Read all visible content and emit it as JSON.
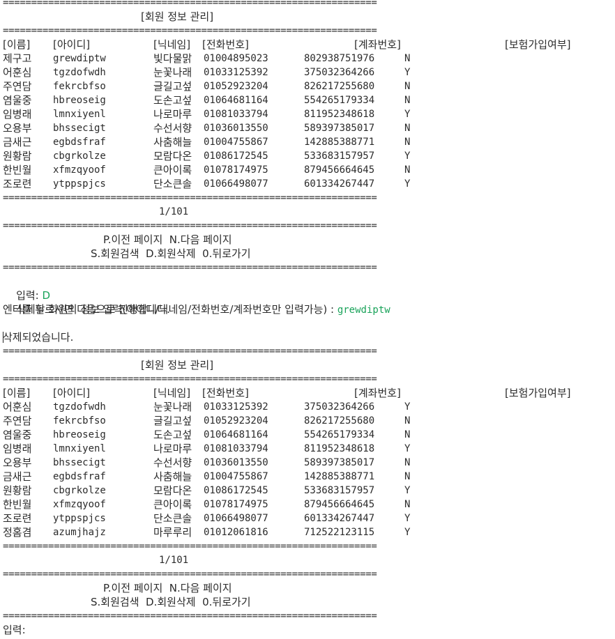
{
  "separator": "==================================================================",
  "title": "[회원 정보 관리]",
  "headers": {
    "name": "[이름]",
    "id": "[아이디]",
    "nick": "[닉네임]",
    "phone": "[전화번호]",
    "account": "[계좌번호]",
    "insurance": "[보험가입여부]"
  },
  "table1": [
    {
      "name": "제구고",
      "id": "grewdiptw",
      "nick": "빛다물맑",
      "phone": "01004895023",
      "account": "802938751976",
      "ins": "N"
    },
    {
      "name": "어훈심",
      "id": "tgzdofwdh",
      "nick": "눈꽃나래",
      "phone": "01033125392",
      "account": "375032364266",
      "ins": "Y"
    },
    {
      "name": "주연담",
      "id": "fekrcbfso",
      "nick": "글길고섶",
      "phone": "01052923204",
      "account": "826217255680",
      "ins": "N"
    },
    {
      "name": "염울중",
      "id": "hbreoseig",
      "nick": "도손고섶",
      "phone": "01064681164",
      "account": "554265179334",
      "ins": "N"
    },
    {
      "name": "임병래",
      "id": "lmnxiyenl",
      "nick": "나로마루",
      "phone": "01081033794",
      "account": "811952348618",
      "ins": "Y"
    },
    {
      "name": "오용부",
      "id": "bhssecigt",
      "nick": "수선서향",
      "phone": "01036013550",
      "account": "589397385017",
      "ins": "N"
    },
    {
      "name": "금새근",
      "id": "egbdsfraf",
      "nick": "사춤해늘",
      "phone": "01004755867",
      "account": "142885388771",
      "ins": "N"
    },
    {
      "name": "원황람",
      "id": "cbgrkolze",
      "nick": "모람다온",
      "phone": "01086172545",
      "account": "533683157957",
      "ins": "Y"
    },
    {
      "name": "한빈월",
      "id": "xfmzqyoof",
      "nick": "큰아이록",
      "phone": "01078174975",
      "account": "879456664645",
      "ins": "N"
    },
    {
      "name": "조로련",
      "id": "ytppspjcs",
      "nick": "단소큰솔",
      "phone": "01066498077",
      "account": "601334267447",
      "ins": "Y"
    }
  ],
  "table2": [
    {
      "name": "어훈심",
      "id": "tgzdofwdh",
      "nick": "눈꽃나래",
      "phone": "01033125392",
      "account": "375032364266",
      "ins": "Y"
    },
    {
      "name": "주연담",
      "id": "fekrcbfso",
      "nick": "글길고섶",
      "phone": "01052923204",
      "account": "826217255680",
      "ins": "N"
    },
    {
      "name": "염울중",
      "id": "hbreoseig",
      "nick": "도손고섶",
      "phone": "01064681164",
      "account": "554265179334",
      "ins": "N"
    },
    {
      "name": "임병래",
      "id": "lmnxiyenl",
      "nick": "나로마루",
      "phone": "01081033794",
      "account": "811952348618",
      "ins": "Y"
    },
    {
      "name": "오용부",
      "id": "bhssecigt",
      "nick": "수선서향",
      "phone": "01036013550",
      "account": "589397385017",
      "ins": "N"
    },
    {
      "name": "금새근",
      "id": "egbdsfraf",
      "nick": "사춤해늘",
      "phone": "01004755867",
      "account": "142885388771",
      "ins": "N"
    },
    {
      "name": "원황람",
      "id": "cbgrkolze",
      "nick": "모람다온",
      "phone": "01086172545",
      "account": "533683157957",
      "ins": "Y"
    },
    {
      "name": "한빈월",
      "id": "xfmzqyoof",
      "nick": "큰아이록",
      "phone": "01078174975",
      "account": "879456664645",
      "ins": "N"
    },
    {
      "name": "조로련",
      "id": "ytppspjcs",
      "nick": "단소큰솔",
      "phone": "01066498077",
      "account": "601334267447",
      "ins": "Y"
    },
    {
      "name": "정홈겸",
      "id": "azumjhajz",
      "nick": "마루루리",
      "phone": "01012061816",
      "account": "712522123115",
      "ins": "Y"
    }
  ],
  "page_indicator": "1/101",
  "menu_line1": "P.이전 페이지  N.다음 페이지",
  "menu_line2": "S.회원검색  D.회원삭제  0.뒤로가기",
  "input_label": "입력: ",
  "input_value": "D",
  "delete_prompt": "삭제할 회원의 정보 입력(아이디/닉네임/전화번호/계좌번호만 입력가능) : ",
  "delete_value": "grewdiptw",
  "enter_msg": "엔터를 누르시면 다음으로 진행합니다.",
  "deleted_msg": "삭제되었습니다.",
  "final_input_label": "입력: ",
  "colors": {
    "input_green": "#1aa35a",
    "text": "#2b2b2b",
    "background": "#ffffff"
  }
}
